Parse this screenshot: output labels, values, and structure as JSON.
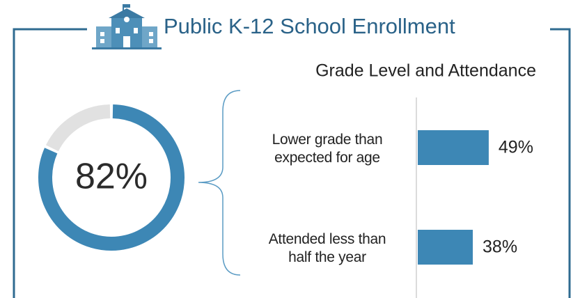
{
  "title": "Public K-12 School Enrollment",
  "chart_data": [
    {
      "type": "donut",
      "values": [
        82
      ],
      "value_labels": [
        "82%"
      ],
      "ylim": [
        0,
        100
      ],
      "color": "#3d87b5",
      "track_color": "#e1e1e1"
    },
    {
      "type": "bar",
      "orientation": "horizontal",
      "title": "Grade Level and Attendance",
      "categories": [
        "Lower grade than expected for age",
        "Attended less than half the year"
      ],
      "values": [
        49,
        38
      ],
      "value_labels": [
        "49%",
        "38%"
      ],
      "xlim": [
        0,
        100
      ],
      "color": "#3d87b5"
    }
  ]
}
